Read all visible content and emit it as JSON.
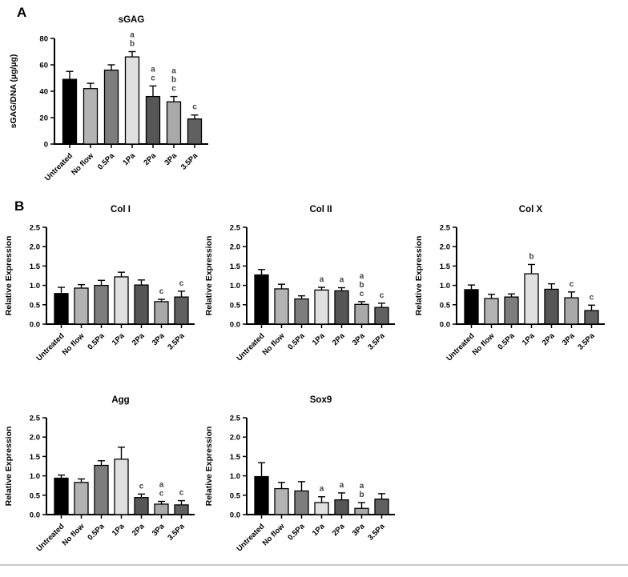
{
  "panels": {
    "a_label": "A",
    "b_label": "B"
  },
  "style": {
    "background": "#ffffff",
    "axis_color": "#000000",
    "annotation_color": "#3f3f3f",
    "divider_color": "#c9c9c9",
    "bar_colors": [
      "#000000",
      "#b3b3b3",
      "#7d7d7d",
      "#e0e0e0",
      "#565656",
      "#a9a9a9",
      "#606060"
    ]
  },
  "chart_data": [
    {
      "id": "sgag",
      "panel": "A",
      "type": "bar",
      "title": "sGAG",
      "xlabel": "",
      "ylabel": "sGAG/DNA (µg/µg)",
      "ylim": [
        0,
        80
      ],
      "yticks": [
        "0",
        "20",
        "40",
        "60",
        "80"
      ],
      "legend": "none",
      "grid": false,
      "categories": [
        "Untreated",
        "No flow",
        "0.5Pa",
        "1Pa",
        "2Pa",
        "3Pa",
        "3.5Pa"
      ],
      "values": [
        49,
        42,
        56,
        66,
        36,
        32,
        19
      ],
      "errors": [
        6,
        4,
        4,
        4,
        8,
        4,
        3
      ],
      "annotations": [
        [],
        [],
        [],
        [
          "a",
          "b"
        ],
        [
          "a",
          "c"
        ],
        [
          "a",
          "b",
          "c"
        ],
        [
          "c"
        ]
      ]
    },
    {
      "id": "col1",
      "panel": "B",
      "type": "bar",
      "title": "Col I",
      "xlabel": "",
      "ylabel": "Relative Expression",
      "ylim": [
        0,
        2.5
      ],
      "yticks": [
        "0.0",
        "0.5",
        "1.0",
        "1.5",
        "2.0",
        "2.5"
      ],
      "legend": "none",
      "grid": false,
      "categories": [
        "Untreated",
        "No flow",
        "0.5Pa",
        "1Pa",
        "2Pa",
        "3Pa",
        "3.5Pa"
      ],
      "values": [
        0.79,
        0.93,
        1.0,
        1.22,
        1.01,
        0.58,
        0.7
      ],
      "errors": [
        0.16,
        0.09,
        0.13,
        0.12,
        0.13,
        0.06,
        0.15
      ],
      "annotations": [
        [],
        [],
        [],
        [],
        [],
        [
          "c"
        ],
        [
          "c"
        ]
      ]
    },
    {
      "id": "col2",
      "panel": "B",
      "type": "bar",
      "title": "Col II",
      "xlabel": "",
      "ylabel": "Relative Expression",
      "ylim": [
        0,
        2.5
      ],
      "yticks": [
        "0.0",
        "0.5",
        "1.0",
        "1.5",
        "2.0",
        "2.5"
      ],
      "legend": "none",
      "grid": false,
      "categories": [
        "Untreated",
        "No flow",
        "0.5Pa",
        "1Pa",
        "2Pa",
        "3Pa",
        "3.5Pa"
      ],
      "values": [
        1.27,
        0.91,
        0.65,
        0.88,
        0.86,
        0.51,
        0.43
      ],
      "errors": [
        0.14,
        0.12,
        0.08,
        0.07,
        0.08,
        0.07,
        0.11
      ],
      "annotations": [
        [],
        [],
        [],
        [
          "a"
        ],
        [
          "a"
        ],
        [
          "a",
          "b",
          "c"
        ],
        [
          "c"
        ]
      ]
    },
    {
      "id": "colx",
      "panel": "B",
      "type": "bar",
      "title": "Col X",
      "xlabel": "",
      "ylabel": "Relative Expression",
      "ylim": [
        0,
        2.5
      ],
      "yticks": [
        "0.0",
        "0.5",
        "1.0",
        "1.5",
        "2.0",
        "2.5"
      ],
      "legend": "none",
      "grid": false,
      "categories": [
        "Untreated",
        "No flow",
        "0.5Pa",
        "1Pa",
        "2Pa",
        "3Pa",
        "3.5Pa"
      ],
      "values": [
        0.89,
        0.66,
        0.7,
        1.3,
        0.9,
        0.68,
        0.35
      ],
      "errors": [
        0.12,
        0.11,
        0.08,
        0.24,
        0.14,
        0.15,
        0.14
      ],
      "annotations": [
        [],
        [],
        [],
        [
          "b"
        ],
        [],
        [
          "c"
        ],
        [
          "c"
        ]
      ]
    },
    {
      "id": "agg",
      "panel": "B",
      "type": "bar",
      "title": "Agg",
      "xlabel": "",
      "ylabel": "Relative Expression",
      "ylim": [
        0,
        2.5
      ],
      "yticks": [
        "0.0",
        "0.5",
        "1.0",
        "1.5",
        "2.0",
        "2.5"
      ],
      "legend": "none",
      "grid": false,
      "categories": [
        "Untreated",
        "No flow",
        "0.5Pa",
        "1Pa",
        "2Pa",
        "3Pa",
        "3.5Pa"
      ],
      "values": [
        0.94,
        0.83,
        1.27,
        1.43,
        0.44,
        0.27,
        0.25
      ],
      "errors": [
        0.08,
        0.09,
        0.12,
        0.31,
        0.09,
        0.07,
        0.11
      ],
      "annotations": [
        [],
        [],
        [],
        [],
        [
          "c"
        ],
        [
          "a",
          "c"
        ],
        [
          "c"
        ]
      ]
    },
    {
      "id": "sox9",
      "panel": "B",
      "type": "bar",
      "title": "Sox9",
      "xlabel": "",
      "ylabel": "Relative Expression",
      "ylim": [
        0,
        2.5
      ],
      "yticks": [
        "0.0",
        "0.5",
        "1.0",
        "1.5",
        "2.0",
        "2.5"
      ],
      "legend": "none",
      "grid": false,
      "categories": [
        "Untreated",
        "No flow",
        "0.5Pa",
        "1Pa",
        "2Pa",
        "3Pa",
        "3.5Pa"
      ],
      "values": [
        0.98,
        0.67,
        0.61,
        0.31,
        0.38,
        0.16,
        0.4
      ],
      "errors": [
        0.36,
        0.16,
        0.24,
        0.15,
        0.18,
        0.15,
        0.14
      ],
      "annotations": [
        [],
        [],
        [],
        [
          "a"
        ],
        [
          "a"
        ],
        [
          "a",
          "b"
        ],
        []
      ]
    }
  ]
}
